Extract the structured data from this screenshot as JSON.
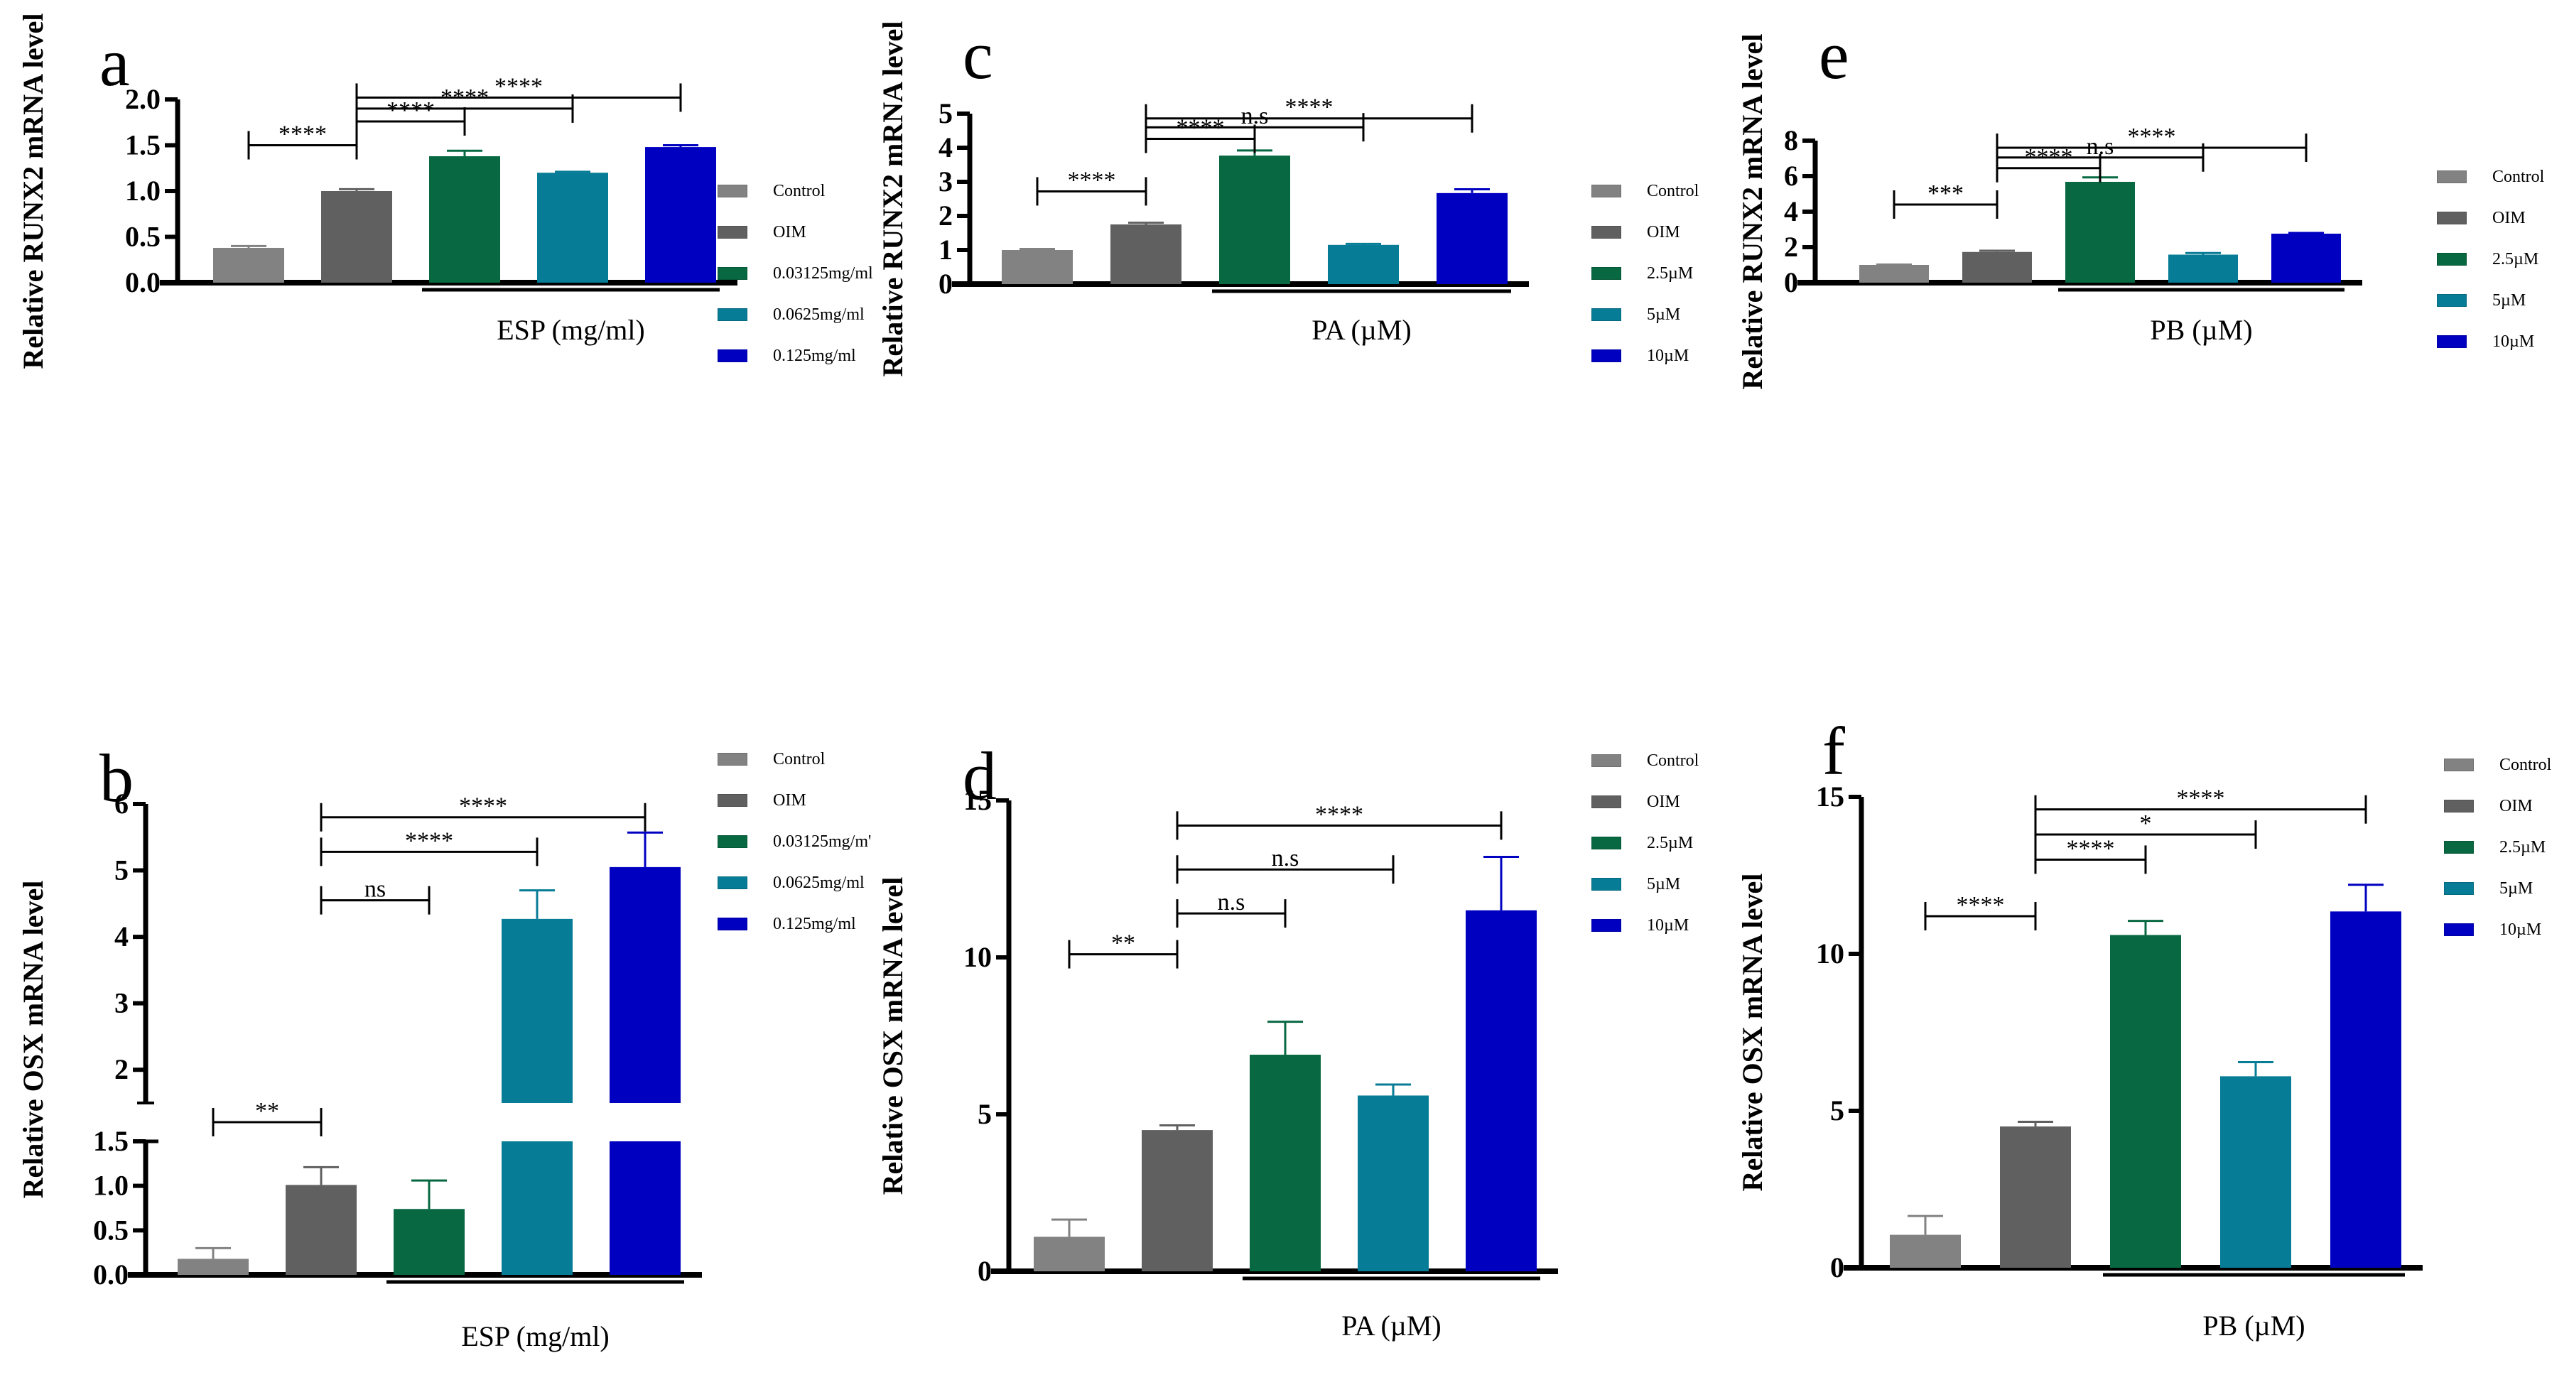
{
  "colors": {
    "Control": "#828282",
    "OIM": "#606060",
    "dose1": "#076842",
    "dose2": "#077c96",
    "dose3": "#0000c0"
  },
  "chart_data": [
    {
      "id": "a",
      "panel_letter": "a",
      "type": "bar",
      "title": "",
      "xlabel": "ESP (mg/ml)",
      "ylabel": "Relative RUNX2 mRNA level",
      "categories": [
        "Control",
        "OIM",
        "0.03125mg/ml",
        "0.0625mg/ml",
        "0.125mg/ml"
      ],
      "legend": [
        "Control",
        "OIM",
        "0.03125mg/ml",
        "0.0625mg/ml",
        "0.125mg/ml"
      ],
      "legend_position": "top-right",
      "values": [
        0.38,
        1.0,
        1.38,
        1.2,
        1.48
      ],
      "error_upper": [
        0.4,
        1.02,
        1.44,
        1.21,
        1.5
      ],
      "ylim": [
        0,
        2.0
      ],
      "yticks": [
        "0.0",
        "0.5",
        "1.0",
        "1.5",
        "2.0"
      ],
      "ytick_values": [
        0,
        0.5,
        1.0,
        1.5,
        2.0
      ],
      "group_bar_from": 2,
      "significance": [
        {
          "from": 0,
          "to": 1,
          "label": "****",
          "y": 1.5
        },
        {
          "from": 1,
          "to": 2,
          "label": "****",
          "y": 1.76
        },
        {
          "from": 1,
          "to": 3,
          "label": "****",
          "y": 1.9
        },
        {
          "from": 1,
          "to": 4,
          "label": "****",
          "y": 2.02
        }
      ],
      "grid": false
    },
    {
      "id": "b",
      "panel_letter": "b",
      "type": "bar",
      "title": "",
      "xlabel": "ESP (mg/ml)",
      "ylabel": "Relative OSX mRNA level",
      "categories": [
        "Control",
        "OIM",
        "0.03125mg/ml",
        "0.0625mg/ml",
        "0.125mg/ml"
      ],
      "legend": [
        "Control",
        "OIM",
        "0.03125mg/m'",
        "0.0625mg/ml",
        "0.125mg/ml"
      ],
      "legend_position": "top-right",
      "values": [
        0.18,
        1.01,
        0.74,
        4.27,
        5.05
      ],
      "error_upper": [
        0.3,
        1.21,
        1.06,
        4.7,
        5.57
      ],
      "ylim": [
        0,
        6
      ],
      "broken_axis": {
        "lower": [
          0,
          1.5
        ],
        "upper": [
          1.5,
          6
        ]
      },
      "yticks_lower": [
        "0.0",
        "0.5",
        "1.0",
        "1.5"
      ],
      "ytick_values_lower": [
        0,
        0.5,
        1.0,
        1.5
      ],
      "yticks_upper": [
        "2",
        "3",
        "4",
        "5",
        "6"
      ],
      "ytick_values_upper": [
        2,
        3,
        4,
        5,
        6
      ],
      "group_bar_from": 2,
      "significance": [
        {
          "from": 0,
          "to": 1,
          "label": "**",
          "y": 1.58,
          "segment": "gap"
        },
        {
          "from": 1,
          "to": 2,
          "label": "ns",
          "y": 4.55
        },
        {
          "from": 1,
          "to": 3,
          "label": "****",
          "y": 5.28
        },
        {
          "from": 1,
          "to": 4,
          "label": "****",
          "y": 5.8
        }
      ],
      "grid": false
    },
    {
      "id": "c",
      "panel_letter": "c",
      "type": "bar",
      "title": "",
      "xlabel": "PA (µM)",
      "ylabel": "Relative RUNX2 mRNA level",
      "categories": [
        "Control",
        "OIM",
        "2.5µM",
        "5µM",
        "10µM"
      ],
      "legend": [
        "Control",
        "OIM",
        "2.5µM",
        "5µM",
        "10µM"
      ],
      "legend_position": "top-right",
      "values": [
        1.0,
        1.75,
        3.77,
        1.15,
        2.67
      ],
      "error_upper": [
        1.03,
        1.8,
        3.92,
        1.18,
        2.78
      ],
      "ylim": [
        0,
        5
      ],
      "yticks": [
        "0",
        "1",
        "2",
        "3",
        "4",
        "5"
      ],
      "ytick_values": [
        0,
        1,
        2,
        3,
        4,
        5
      ],
      "group_bar_from": 2,
      "significance": [
        {
          "from": 0,
          "to": 1,
          "label": "****",
          "y": 2.72
        },
        {
          "from": 1,
          "to": 2,
          "label": "****",
          "y": 4.26
        },
        {
          "from": 1,
          "to": 3,
          "label": "n.s",
          "y": 4.6
        },
        {
          "from": 1,
          "to": 4,
          "label": "****",
          "y": 4.86
        }
      ],
      "grid": false
    },
    {
      "id": "d",
      "panel_letter": "d",
      "type": "bar",
      "title": "",
      "xlabel": "PA (µM)",
      "ylabel": "Relative OSX mRNA level",
      "categories": [
        "Control",
        "OIM",
        "2.5µM",
        "5µM",
        "10µM"
      ],
      "legend": [
        "Control",
        "OIM",
        "2.5µM",
        "5µM",
        "10µM"
      ],
      "legend_position": "top-right",
      "values": [
        1.1,
        4.5,
        6.9,
        5.6,
        11.5
      ],
      "error_upper": [
        1.65,
        4.65,
        7.95,
        5.95,
        13.2
      ],
      "ylim": [
        0,
        15
      ],
      "yticks": [
        "0",
        "5",
        "10",
        "15"
      ],
      "ytick_values": [
        0,
        5,
        10,
        15
      ],
      "group_bar_from": 2,
      "significance": [
        {
          "from": 0,
          "to": 1,
          "label": "**",
          "y": 10.1
        },
        {
          "from": 1,
          "to": 2,
          "label": "n.s",
          "y": 11.4
        },
        {
          "from": 1,
          "to": 3,
          "label": "n.s",
          "y": 12.8
        },
        {
          "from": 1,
          "to": 4,
          "label": "****",
          "y": 14.2
        }
      ],
      "grid": false
    },
    {
      "id": "e",
      "panel_letter": "e",
      "type": "bar",
      "title": "",
      "xlabel": "PB (µM)",
      "ylabel": "Relative RUNX2 mRNA level",
      "categories": [
        "Control",
        "OIM",
        "2.5µM",
        "5µM",
        "10µM"
      ],
      "legend": [
        "Control",
        "OIM",
        "2.5µM",
        "5µM",
        "10µM"
      ],
      "legend_position": "top-right",
      "values": [
        1.0,
        1.73,
        5.68,
        1.58,
        2.76
      ],
      "error_upper": [
        1.02,
        1.8,
        5.93,
        1.67,
        2.8
      ],
      "ylim": [
        0,
        8
      ],
      "yticks": [
        "0",
        "2",
        "4",
        "6",
        "8"
      ],
      "ytick_values": [
        0,
        2,
        4,
        6,
        8
      ],
      "group_bar_from": 2,
      "significance": [
        {
          "from": 0,
          "to": 1,
          "label": "***",
          "y": 4.4
        },
        {
          "from": 1,
          "to": 2,
          "label": "****",
          "y": 6.45
        },
        {
          "from": 1,
          "to": 3,
          "label": "n.s",
          "y": 7.05
        },
        {
          "from": 1,
          "to": 4,
          "label": "****",
          "y": 7.6
        }
      ],
      "grid": false
    },
    {
      "id": "f",
      "panel_letter": "f",
      "type": "bar",
      "title": "",
      "xlabel": "PB (µM)",
      "ylabel": "Relative OSX mRNA level",
      "categories": [
        "Control",
        "OIM",
        "2.5µM",
        "5µM",
        "10µM"
      ],
      "legend": [
        "Control",
        "OIM",
        "2.5µM",
        "5µM",
        "10µM"
      ],
      "legend_position": "top-right",
      "values": [
        1.05,
        4.5,
        10.6,
        6.1,
        11.35
      ],
      "error_upper": [
        1.65,
        4.65,
        11.05,
        6.55,
        12.2
      ],
      "ylim": [
        0,
        15
      ],
      "yticks": [
        "0",
        "5",
        "10",
        "15"
      ],
      "ytick_values": [
        0,
        5,
        10,
        15
      ],
      "group_bar_from": 2,
      "significance": [
        {
          "from": 0,
          "to": 1,
          "label": "****",
          "y": 11.2
        },
        {
          "from": 1,
          "to": 2,
          "label": "****",
          "y": 13.0
        },
        {
          "from": 1,
          "to": 3,
          "label": "*",
          "y": 13.8
        },
        {
          "from": 1,
          "to": 4,
          "label": "****",
          "y": 14.6
        }
      ],
      "grid": false
    }
  ]
}
